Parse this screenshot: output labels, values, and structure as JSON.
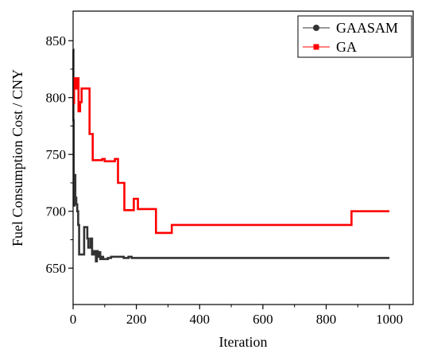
{
  "chart_data": {
    "type": "line",
    "title": "",
    "xlabel": "Iteration",
    "ylabel": "Fuel Consumption Cost / CNY",
    "xlim": [
      0,
      1075
    ],
    "ylim": [
      618,
      876
    ],
    "x_ticks": [
      0,
      200,
      400,
      600,
      800,
      1000
    ],
    "y_ticks": [
      650,
      700,
      750,
      800,
      850
    ],
    "grid": false,
    "legend_position": "top-right",
    "series": [
      {
        "name": "GAASAM",
        "color": "#333333",
        "marker": "circle",
        "x": [
          0,
          1,
          1,
          2,
          2,
          3,
          3,
          4,
          4,
          5,
          5,
          7,
          7,
          10,
          10,
          13,
          13,
          16,
          16,
          19,
          19,
          22,
          22,
          27,
          27,
          35,
          35,
          45,
          45,
          48,
          48,
          55,
          55,
          60,
          60,
          66,
          66,
          72,
          72,
          75,
          75,
          78,
          78,
          82,
          82,
          86,
          86,
          90,
          90,
          95,
          95,
          110,
          110,
          120,
          120,
          140,
          140,
          160,
          160,
          175,
          175,
          185,
          185,
          1000
        ],
        "y": [
          842,
          842,
          780,
          780,
          730,
          730,
          705,
          705,
          725,
          725,
          732,
          732,
          712,
          712,
          706,
          706,
          700,
          700,
          688,
          688,
          662,
          662,
          662,
          662,
          662,
          662,
          686,
          686,
          676,
          676,
          668,
          668,
          676,
          676,
          662,
          662,
          665,
          665,
          656,
          656,
          665,
          665,
          660,
          660,
          664,
          664,
          658,
          658,
          660,
          660,
          658,
          658,
          659,
          659,
          660,
          660,
          660,
          660,
          659,
          659,
          660,
          660,
          659,
          659
        ]
      },
      {
        "name": "GA",
        "color": "#ff0000",
        "marker": "square",
        "x": [
          0,
          3,
          3,
          8,
          8,
          12,
          12,
          17,
          17,
          22,
          22,
          27,
          27,
          52,
          52,
          62,
          62,
          92,
          92,
          100,
          100,
          107,
          107,
          132,
          132,
          142,
          142,
          162,
          162,
          192,
          192,
          205,
          205,
          218,
          218,
          252,
          252,
          262,
          262,
          312,
          312,
          880,
          880,
          1000
        ],
        "y": [
          795,
          795,
          817,
          817,
          808,
          808,
          817,
          817,
          788,
          788,
          796,
          796,
          808,
          808,
          768,
          768,
          745,
          745,
          746,
          746,
          744,
          744,
          744,
          744,
          746,
          746,
          725,
          725,
          701,
          701,
          711,
          711,
          702,
          702,
          702,
          702,
          702,
          702,
          681,
          681,
          688,
          688,
          700,
          700
        ]
      }
    ]
  }
}
